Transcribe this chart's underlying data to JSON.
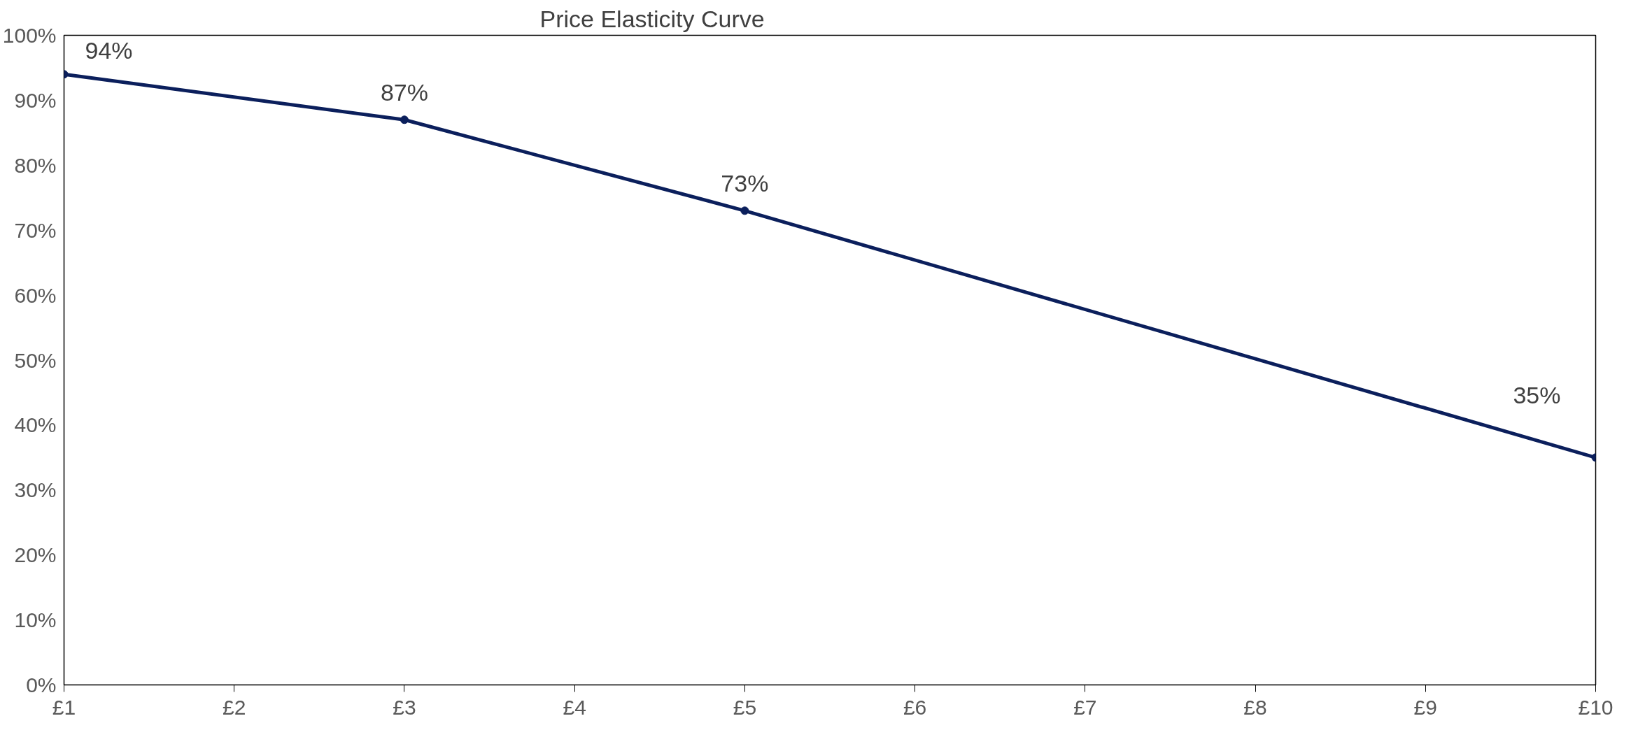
{
  "chart_data": {
    "type": "line",
    "title": "Price Elasticity Curve",
    "x": [
      1,
      3,
      5,
      10
    ],
    "series": [
      {
        "color": "#0b1f5c",
        "values": [
          94,
          87,
          73,
          35
        ],
        "value_labels": [
          "94%",
          "87%",
          "73%",
          "35%"
        ]
      }
    ],
    "xlim": [
      1,
      10
    ],
    "xticks": [
      {
        "value": 1,
        "label": "£1"
      },
      {
        "value": 2,
        "label": "£2"
      },
      {
        "value": 3,
        "label": "£3"
      },
      {
        "value": 4,
        "label": "£4"
      },
      {
        "value": 5,
        "label": "£5"
      },
      {
        "value": 6,
        "label": "£6"
      },
      {
        "value": 7,
        "label": "£7"
      },
      {
        "value": 8,
        "label": "£8"
      },
      {
        "value": 9,
        "label": "£9"
      },
      {
        "value": 10,
        "label": "£10"
      }
    ],
    "ylim": [
      0,
      100
    ],
    "yticks": [
      {
        "value": 0,
        "label": "0%"
      },
      {
        "value": 10,
        "label": "10%"
      },
      {
        "value": 20,
        "label": "20%"
      },
      {
        "value": 30,
        "label": "30%"
      },
      {
        "value": 40,
        "label": "40%"
      },
      {
        "value": 50,
        "label": "50%"
      },
      {
        "value": 60,
        "label": "60%"
      },
      {
        "value": 70,
        "label": "70%"
      },
      {
        "value": 80,
        "label": "80%"
      },
      {
        "value": 90,
        "label": "90%"
      },
      {
        "value": 100,
        "label": "100%"
      }
    ],
    "grid": false,
    "marker": "circle",
    "line_style": "solid"
  }
}
